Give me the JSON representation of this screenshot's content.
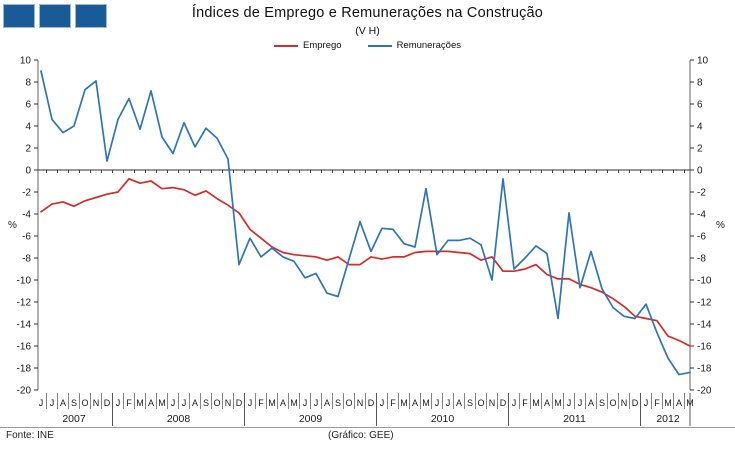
{
  "header": {
    "title": "Índices de Emprego e Remunerações  na  Construção",
    "subtitle": "(V H)"
  },
  "footer": {
    "source": "Fonte: INE",
    "credit": "(Gráfico: GEE)"
  },
  "chart_data": {
    "type": "line",
    "title": "Índices de Emprego e Remunerações  na  Construção",
    "subtitle": "(V H)",
    "ylabel_left": "%",
    "ylabel_right": "%",
    "ylim": [
      -20,
      10
    ],
    "ytick_step": 2,
    "grid": false,
    "legend_position": "top-center",
    "axis_color": "#7f7f7f",
    "zero_axis_color": "#595959",
    "text_color": "#1a1a1a",
    "years": [
      {
        "label": "2007",
        "months": [
          "J",
          "J",
          "A",
          "S",
          "O",
          "N",
          "D"
        ]
      },
      {
        "label": "2008",
        "months": [
          "J",
          "F",
          "M",
          "A",
          "M",
          "J",
          "J",
          "A",
          "S",
          "O",
          "N",
          "D"
        ]
      },
      {
        "label": "2009",
        "months": [
          "J",
          "F",
          "M",
          "A",
          "M",
          "J",
          "J",
          "A",
          "S",
          "O",
          "N",
          "D"
        ]
      },
      {
        "label": "2010",
        "months": [
          "J",
          "F",
          "M",
          "A",
          "M",
          "J",
          "J",
          "A",
          "S",
          "O",
          "N",
          "D"
        ]
      },
      {
        "label": "2011",
        "months": [
          "J",
          "F",
          "M",
          "A",
          "M",
          "J",
          "J",
          "A",
          "S",
          "O",
          "N",
          "D"
        ]
      },
      {
        "label": "2012",
        "months": [
          "J",
          "F",
          "M",
          "A",
          "M"
        ]
      }
    ],
    "series": [
      {
        "name": "Emprego",
        "color": "#d62b27",
        "values": [
          -3.8,
          -3.1,
          -2.9,
          -3.3,
          -2.8,
          -2.5,
          -2.2,
          -2.0,
          -0.8,
          -1.2,
          -1.0,
          -1.7,
          -1.6,
          -1.8,
          -2.3,
          -1.9,
          -2.6,
          -3.2,
          -3.9,
          -5.4,
          -6.2,
          -7.0,
          -7.5,
          -7.7,
          -7.8,
          -7.9,
          -8.2,
          -7.9,
          -8.6,
          -8.6,
          -7.9,
          -8.1,
          -7.9,
          -7.9,
          -7.5,
          -7.4,
          -7.4,
          -7.4,
          -7.5,
          -7.6,
          -8.2,
          -7.9,
          -9.2,
          -9.2,
          -9.0,
          -8.6,
          -9.5,
          -9.9,
          -9.9,
          -10.4,
          -10.7,
          -11.1,
          -11.7,
          -12.4,
          -13.3,
          -13.5,
          -13.7,
          -15.1,
          -15.5,
          -16.0
        ]
      },
      {
        "name": "Remunerações",
        "color": "#2e75b6",
        "values": [
          9.0,
          4.6,
          3.4,
          4.0,
          7.3,
          8.1,
          0.8,
          4.6,
          6.5,
          3.7,
          7.2,
          3.0,
          1.5,
          4.3,
          2.1,
          3.8,
          2.9,
          1.0,
          -8.6,
          -6.2,
          -7.9,
          -7.1,
          -7.9,
          -8.3,
          -9.8,
          -9.4,
          -11.2,
          -11.5,
          -8.1,
          -4.7,
          -7.4,
          -5.3,
          -5.4,
          -6.7,
          -7.0,
          -1.7,
          -7.7,
          -6.4,
          -6.4,
          -6.2,
          -6.8,
          -10.0,
          -0.8,
          -9.0,
          -8.0,
          -6.9,
          -7.6,
          -13.5,
          -3.9,
          -10.7,
          -7.4,
          -10.8,
          -12.5,
          -13.3,
          -13.5,
          -12.2,
          -14.8,
          -17.1,
          -18.6,
          -18.4
        ]
      }
    ]
  }
}
